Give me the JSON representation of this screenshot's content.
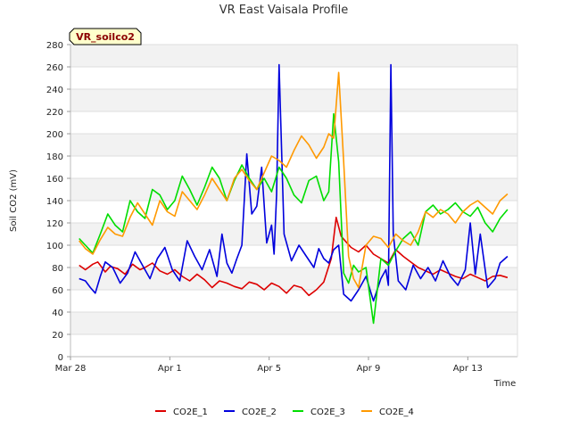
{
  "chart_data": {
    "type": "line",
    "title": "VR East Vaisala Profile",
    "badge": "VR_soilco2",
    "xlabel": "Time",
    "ylabel": "Soil CO2 (mV)",
    "ylim": [
      0,
      280
    ],
    "yticks": [
      0,
      20,
      40,
      60,
      80,
      100,
      120,
      140,
      160,
      180,
      200,
      220,
      240,
      260,
      280
    ],
    "xlim": [
      0,
      18.0
    ],
    "xticks": [
      {
        "value": 0,
        "label": "Mar 28"
      },
      {
        "value": 4,
        "label": "Apr 1"
      },
      {
        "value": 8,
        "label": "Apr 5"
      },
      {
        "value": 12,
        "label": "Apr 9"
      },
      {
        "value": 16,
        "label": "Apr 13"
      }
    ],
    "grid": true,
    "legend_position": "bottom",
    "series": [
      {
        "name": "CO2E_1",
        "color": "#dd0000",
        "x": [
          0.35,
          0.6,
          0.9,
          1.1,
          1.4,
          1.6,
          1.9,
          2.2,
          2.5,
          2.8,
          3.0,
          3.3,
          3.6,
          3.9,
          4.2,
          4.5,
          4.8,
          5.1,
          5.4,
          5.7,
          6.0,
          6.3,
          6.6,
          6.9,
          7.2,
          7.5,
          7.8,
          8.1,
          8.4,
          8.7,
          9.0,
          9.3,
          9.6,
          9.9,
          10.2,
          10.5,
          10.7,
          10.9,
          11.1,
          11.3,
          11.6,
          11.9,
          12.2,
          12.5,
          12.8,
          13.1,
          13.4,
          13.7,
          14.0,
          14.3,
          14.6,
          14.9,
          15.2,
          15.5,
          15.8,
          16.1,
          16.4,
          16.7,
          17.0,
          17.3,
          17.6
        ],
        "values": [
          82,
          78,
          83,
          85,
          76,
          81,
          79,
          74,
          83,
          78,
          80,
          84,
          77,
          74,
          78,
          72,
          68,
          74,
          69,
          62,
          68,
          66,
          63,
          61,
          67,
          65,
          60,
          66,
          63,
          57,
          64,
          62,
          55,
          60,
          67,
          88,
          125,
          108,
          103,
          98,
          94,
          100,
          92,
          88,
          84,
          96,
          90,
          85,
          80,
          77,
          74,
          78,
          75,
          72,
          70,
          74,
          71,
          68,
          72,
          73,
          71
        ]
      },
      {
        "name": "CO2E_2",
        "color": "#0000dd",
        "x": [
          0.35,
          0.6,
          0.8,
          1.0,
          1.2,
          1.4,
          1.7,
          2.0,
          2.3,
          2.6,
          2.9,
          3.2,
          3.5,
          3.8,
          4.1,
          4.4,
          4.7,
          5.0,
          5.3,
          5.6,
          5.9,
          6.1,
          6.3,
          6.5,
          6.7,
          6.9,
          7.1,
          7.3,
          7.5,
          7.7,
          7.9,
          8.1,
          8.2,
          8.3,
          8.4,
          8.6,
          8.9,
          9.2,
          9.5,
          9.8,
          10.0,
          10.2,
          10.4,
          10.6,
          10.8,
          11.0,
          11.3,
          11.6,
          11.9,
          12.2,
          12.5,
          12.7,
          12.8,
          12.9,
          13.0,
          13.2,
          13.5,
          13.8,
          14.1,
          14.4,
          14.7,
          15.0,
          15.3,
          15.6,
          15.9,
          16.1,
          16.3,
          16.5,
          16.8,
          17.1,
          17.3,
          17.6
        ],
        "values": [
          70,
          68,
          62,
          57,
          72,
          85,
          80,
          66,
          75,
          94,
          82,
          70,
          88,
          98,
          78,
          68,
          104,
          90,
          78,
          96,
          72,
          110,
          84,
          75,
          88,
          100,
          182,
          128,
          135,
          170,
          102,
          118,
          92,
          145,
          262,
          110,
          86,
          100,
          90,
          80,
          97,
          88,
          84,
          96,
          100,
          56,
          50,
          60,
          72,
          50,
          70,
          78,
          64,
          262,
          110,
          68,
          60,
          82,
          70,
          80,
          68,
          86,
          72,
          64,
          78,
          120,
          74,
          110,
          62,
          70,
          84,
          90
        ]
      },
      {
        "name": "CO2E_3",
        "color": "#00dd00",
        "x": [
          0.35,
          0.6,
          0.9,
          1.2,
          1.5,
          1.8,
          2.1,
          2.4,
          2.7,
          3.0,
          3.3,
          3.6,
          3.9,
          4.2,
          4.5,
          4.8,
          5.1,
          5.4,
          5.7,
          6.0,
          6.3,
          6.6,
          6.9,
          7.2,
          7.5,
          7.8,
          8.1,
          8.4,
          8.7,
          9.0,
          9.3,
          9.6,
          9.9,
          10.2,
          10.4,
          10.6,
          10.8,
          11.0,
          11.2,
          11.4,
          11.6,
          11.9,
          12.2,
          12.5,
          12.8,
          13.1,
          13.4,
          13.7,
          14.0,
          14.3,
          14.6,
          14.9,
          15.2,
          15.5,
          15.8,
          16.1,
          16.4,
          16.7,
          17.0,
          17.3,
          17.6
        ],
        "values": [
          106,
          100,
          93,
          110,
          128,
          118,
          112,
          140,
          130,
          124,
          150,
          145,
          132,
          140,
          162,
          150,
          136,
          152,
          170,
          160,
          140,
          158,
          172,
          160,
          150,
          160,
          148,
          170,
          160,
          145,
          138,
          158,
          162,
          140,
          148,
          218,
          175,
          75,
          66,
          82,
          76,
          80,
          30,
          88,
          82,
          95,
          106,
          112,
          100,
          130,
          136,
          128,
          132,
          138,
          130,
          126,
          134,
          120,
          112,
          124,
          132
        ]
      },
      {
        "name": "CO2E_4",
        "color": "#ff9900",
        "x": [
          0.35,
          0.6,
          0.9,
          1.2,
          1.5,
          1.8,
          2.1,
          2.4,
          2.7,
          3.0,
          3.3,
          3.6,
          3.9,
          4.2,
          4.5,
          4.8,
          5.1,
          5.4,
          5.7,
          6.0,
          6.3,
          6.6,
          6.9,
          7.2,
          7.5,
          7.8,
          8.1,
          8.4,
          8.7,
          9.0,
          9.3,
          9.6,
          9.9,
          10.2,
          10.4,
          10.6,
          10.8,
          11.0,
          11.2,
          11.4,
          11.6,
          11.9,
          12.2,
          12.5,
          12.8,
          13.1,
          13.4,
          13.7,
          14.0,
          14.3,
          14.6,
          14.9,
          15.2,
          15.5,
          15.8,
          16.1,
          16.4,
          16.7,
          17.0,
          17.3,
          17.6
        ],
        "values": [
          104,
          97,
          92,
          105,
          116,
          110,
          108,
          125,
          138,
          128,
          118,
          140,
          130,
          126,
          148,
          140,
          132,
          145,
          160,
          150,
          140,
          160,
          168,
          158,
          150,
          165,
          180,
          176,
          170,
          185,
          198,
          190,
          178,
          188,
          200,
          196,
          255,
          175,
          90,
          70,
          62,
          100,
          108,
          106,
          98,
          110,
          104,
          100,
          112,
          130,
          125,
          132,
          128,
          120,
          130,
          136,
          140,
          134,
          128,
          140,
          146
        ]
      }
    ]
  }
}
